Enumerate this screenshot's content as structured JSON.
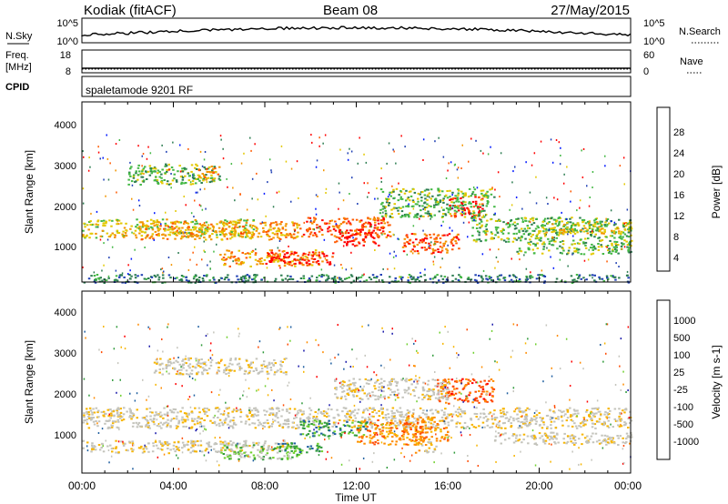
{
  "header": {
    "station": "Kodiak (fitACF)",
    "beam": "Beam 08",
    "date": "27/May/2015"
  },
  "status_panels": {
    "nsky_label": "N.Sky",
    "nsky_ticks": [
      "10^5",
      "10^0"
    ],
    "nsearch_label": "N.Search",
    "nsearch_ticks": [
      "10^5",
      "10^0"
    ],
    "freq_label": "Freq.",
    "freq_unit": "[MHz]",
    "freq_ticks": [
      "18",
      "8"
    ],
    "nave_label": "Nave",
    "nave_ticks": [
      "60",
      "0"
    ],
    "cpid_label": "CPID",
    "cpid_value": "spaletamode 9201 RF"
  },
  "colors": {
    "power_scale": [
      "#0018ff",
      "#1f3fb4",
      "#2d7d52",
      "#44b845",
      "#e3c800",
      "#f39500",
      "#ff5a00",
      "#ff0000"
    ],
    "velocity_scale": [
      "#ff0000",
      "#ff4a00",
      "#ff8c00",
      "#f7b500",
      "#c4c4bc",
      "#c4c4bc",
      "#6fd02f",
      "#2f9a3a",
      "#1f5fa0",
      "#1a1aaa"
    ],
    "ground_scatter": "#c4c4bc"
  },
  "chart_data": [
    {
      "type": "heatmap",
      "name": "power",
      "ylabel": "Slant Range [km]",
      "yticks": [
        "4000",
        "3000",
        "2000",
        "1000"
      ],
      "ylim": [
        200,
        4600
      ],
      "xlim": [
        0,
        24
      ],
      "colorbar_title": "Power [dB]",
      "colorbar_ticks": [
        "28",
        "24",
        "20",
        "16",
        "12",
        "8",
        "4"
      ],
      "bands": [
        {
          "t0": 0.0,
          "t1": 7.5,
          "r0": 1300,
          "r1": 1750,
          "level": 4
        },
        {
          "t0": 2.5,
          "t1": 9.5,
          "r0": 1250,
          "r1": 1700,
          "level": 5
        },
        {
          "t0": 9.5,
          "t1": 13.5,
          "r0": 1300,
          "r1": 1800,
          "level": 6
        },
        {
          "t0": 6.0,
          "t1": 10.5,
          "r0": 600,
          "r1": 1000,
          "level": 5
        },
        {
          "t0": 8.0,
          "t1": 11.0,
          "r0": 650,
          "r1": 950,
          "level": 7
        },
        {
          "t0": 11.0,
          "t1": 13.0,
          "r0": 1100,
          "r1": 1500,
          "level": 7
        },
        {
          "t0": 14.0,
          "t1": 16.5,
          "r0": 900,
          "r1": 1400,
          "level": 6
        },
        {
          "t0": 16.0,
          "t1": 17.5,
          "r0": 1800,
          "r1": 2300,
          "level": 7
        },
        {
          "t0": 13.0,
          "t1": 18.0,
          "r0": 1800,
          "r1": 2500,
          "level": 3
        },
        {
          "t0": 17.0,
          "t1": 24.0,
          "r0": 1200,
          "r1": 1800,
          "level": 3
        },
        {
          "t0": 20.0,
          "t1": 24.0,
          "r0": 1400,
          "r1": 1700,
          "level": 4
        },
        {
          "t0": 2.0,
          "t1": 6.0,
          "r0": 2600,
          "r1": 3100,
          "level": 3
        },
        {
          "t0": 5.0,
          "t1": 6.0,
          "r0": 2700,
          "r1": 3050,
          "level": 5
        },
        {
          "t0": 0.0,
          "t1": 24.0,
          "r0": 200,
          "r1": 400,
          "level": 2
        },
        {
          "t0": 19.0,
          "t1": 24.0,
          "r0": 900,
          "r1": 1200,
          "level": 3
        }
      ]
    },
    {
      "type": "heatmap",
      "name": "velocity",
      "xlabel": "Time UT",
      "ylabel": "Slant Range [km]",
      "xticks": [
        "00:00",
        "04:00",
        "08:00",
        "12:00",
        "16:00",
        "20:00",
        "00:00"
      ],
      "yticks": [
        "4000",
        "3000",
        "2000",
        "1000"
      ],
      "ylim": [
        200,
        4600
      ],
      "xlim": [
        0,
        24
      ],
      "colorbar_title": "Velocity [m s-1]",
      "colorbar_ticks": [
        "1000",
        "500",
        "100",
        "25",
        "-25",
        "-100",
        "-500",
        "-1000"
      ],
      "bands": [
        {
          "t0": 0.0,
          "t1": 24.0,
          "r0": 1300,
          "r1": 1800,
          "level": 4
        },
        {
          "t0": 0.0,
          "t1": 9.0,
          "r0": 700,
          "r1": 1000,
          "level": 4
        },
        {
          "t0": 3.0,
          "t1": 9.0,
          "r0": 2600,
          "r1": 3000,
          "level": 4
        },
        {
          "t0": 6.0,
          "t1": 9.5,
          "r0": 550,
          "r1": 900,
          "level": 6
        },
        {
          "t0": 8.5,
          "t1": 10.5,
          "r0": 700,
          "r1": 950,
          "level": 7
        },
        {
          "t0": 9.5,
          "t1": 12.5,
          "r0": 1100,
          "r1": 1500,
          "level": 7
        },
        {
          "t0": 12.0,
          "t1": 15.0,
          "r0": 900,
          "r1": 1500,
          "level": 2
        },
        {
          "t0": 14.0,
          "t1": 16.0,
          "r0": 1000,
          "r1": 1600,
          "level": 2
        },
        {
          "t0": 15.5,
          "t1": 18.0,
          "r0": 1900,
          "r1": 2500,
          "level": 1
        },
        {
          "t0": 11.0,
          "t1": 16.0,
          "r0": 2000,
          "r1": 2500,
          "level": 4
        },
        {
          "t0": 18.0,
          "t1": 24.0,
          "r0": 900,
          "r1": 1200,
          "level": 4
        },
        {
          "t0": 14.5,
          "t1": 15.5,
          "r0": 700,
          "r1": 1000,
          "level": 3
        }
      ]
    }
  ]
}
